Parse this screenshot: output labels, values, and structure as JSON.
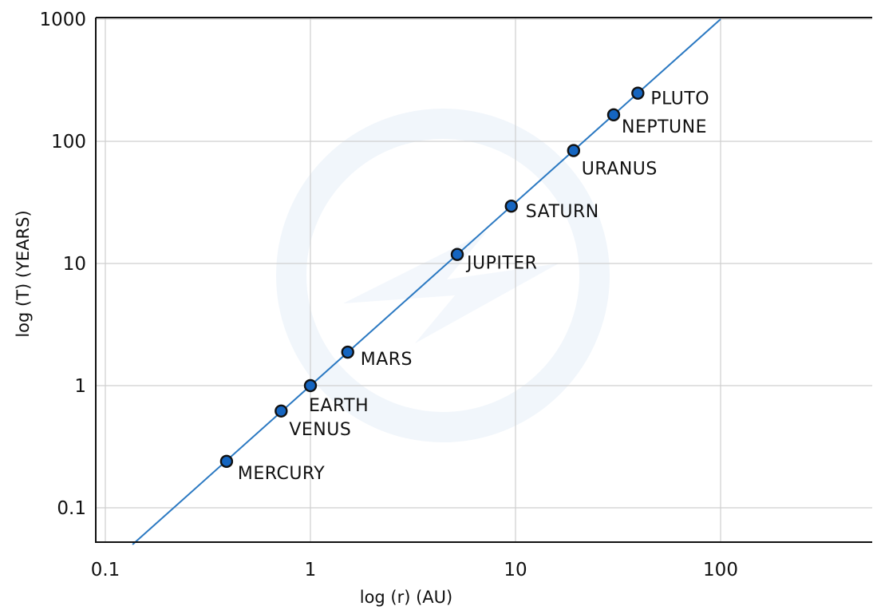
{
  "chart_data": {
    "type": "scatter",
    "title": "",
    "xlabel": "log (r)  (AU)",
    "ylabel": "log (T)  (YEARS)",
    "xscale": "log",
    "yscale": "log",
    "xlim": [
      0.1,
      600
    ],
    "ylim": [
      0.05,
      1000
    ],
    "xticks": [
      0.1,
      1,
      10,
      100
    ],
    "xtick_labels": [
      "0.1",
      "1",
      "10",
      "100"
    ],
    "yticks": [
      0.1,
      1,
      10,
      100,
      1000
    ],
    "ytick_labels": [
      "0.1",
      "1",
      "10",
      "100",
      "1000"
    ],
    "grid": true,
    "legend": "none",
    "colors": {
      "line": "#2b79c2",
      "marker": "#1565c0",
      "marker_edge": "#111111",
      "grid": "#cfcfcf"
    },
    "trend_line": {
      "type": "power-law fit",
      "exponent": 1.5
    },
    "points": [
      {
        "label": "MERCURY",
        "x": 0.39,
        "y": 0.24
      },
      {
        "label": "VENUS",
        "x": 0.72,
        "y": 0.62
      },
      {
        "label": "EARTH",
        "x": 1.0,
        "y": 1.0
      },
      {
        "label": "MARS",
        "x": 1.52,
        "y": 1.88
      },
      {
        "label": "JUPITER",
        "x": 5.2,
        "y": 11.86
      },
      {
        "label": "SATURN",
        "x": 9.54,
        "y": 29.46
      },
      {
        "label": "URANUS",
        "x": 19.2,
        "y": 84.0
      },
      {
        "label": "NEPTUNE",
        "x": 30.1,
        "y": 164.8
      },
      {
        "label": "PLUTO",
        "x": 39.5,
        "y": 248.0
      }
    ]
  }
}
